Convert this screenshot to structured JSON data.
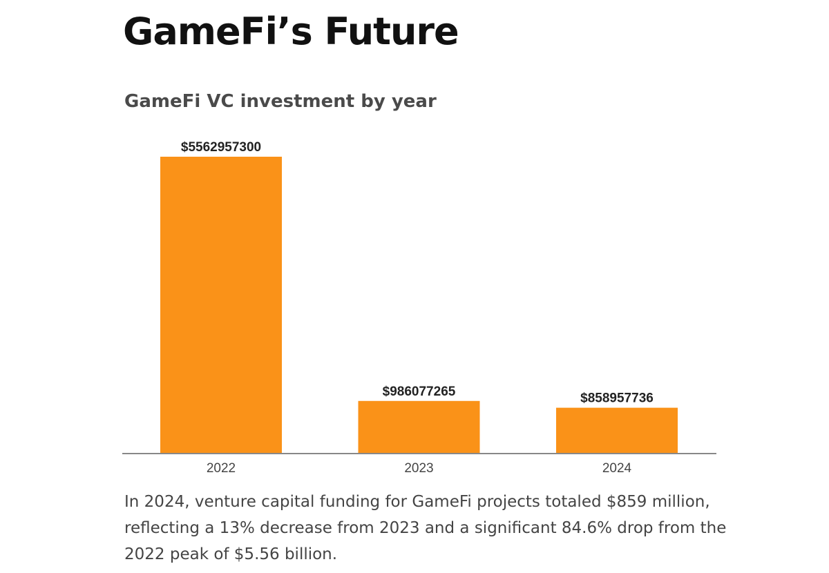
{
  "page": {
    "title": "GameFi’s Future",
    "description": "In 2024, venture capital funding for GameFi projects totaled $859 million, reflecting a 13% decrease from 2023 and a significant 84.6% drop from the 2022 peak of $5.56 billion."
  },
  "chart_data": {
    "type": "bar",
    "title": "GameFi  VC investment by year",
    "xlabel": "",
    "ylabel": "",
    "categories": [
      "2022",
      "2023",
      "2024"
    ],
    "values": [
      5562957300,
      986077265,
      858957736
    ],
    "data_labels": [
      "$5562957300",
      "$986077265",
      "$858957736"
    ],
    "ylim": [
      0,
      5562957300
    ],
    "grid": false,
    "bar_color": "#FA9218",
    "axis_color": "#888888"
  }
}
